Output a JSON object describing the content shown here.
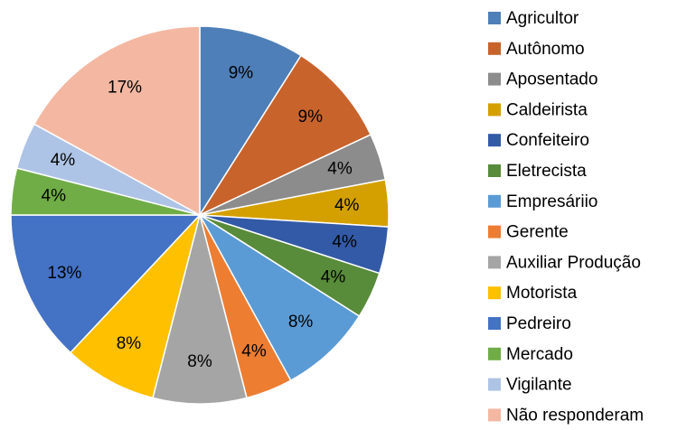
{
  "chart_data": {
    "type": "pie",
    "categories": [
      "Agricultor",
      "Autônomo",
      "Aposentado",
      "Caldeirista",
      "Confeiteiro",
      "Eletrecista",
      "Empresáriio",
      "Gerente",
      "Auxiliar Produção",
      "Motorista",
      "Pedreiro",
      "Mercado",
      "Vigilante",
      "Não responderam"
    ],
    "values": [
      9,
      9,
      4,
      4,
      4,
      4,
      8,
      4,
      8,
      8,
      13,
      4,
      4,
      17
    ],
    "value_labels": [
      "9%",
      "9%",
      "4%",
      "4%",
      "4%",
      "4%",
      "8%",
      "4%",
      "8%",
      "8%",
      "13%",
      "4%",
      "4%",
      "17%"
    ],
    "colors": [
      "#4e7fb8",
      "#c8632c",
      "#8c8c8c",
      "#d4a000",
      "#335aa6",
      "#588b3a",
      "#5b9bd5",
      "#ed7d31",
      "#a5a5a5",
      "#ffc000",
      "#4472c4",
      "#70ad47",
      "#aec4e6",
      "#f4b8a2"
    ],
    "legend": "right"
  }
}
